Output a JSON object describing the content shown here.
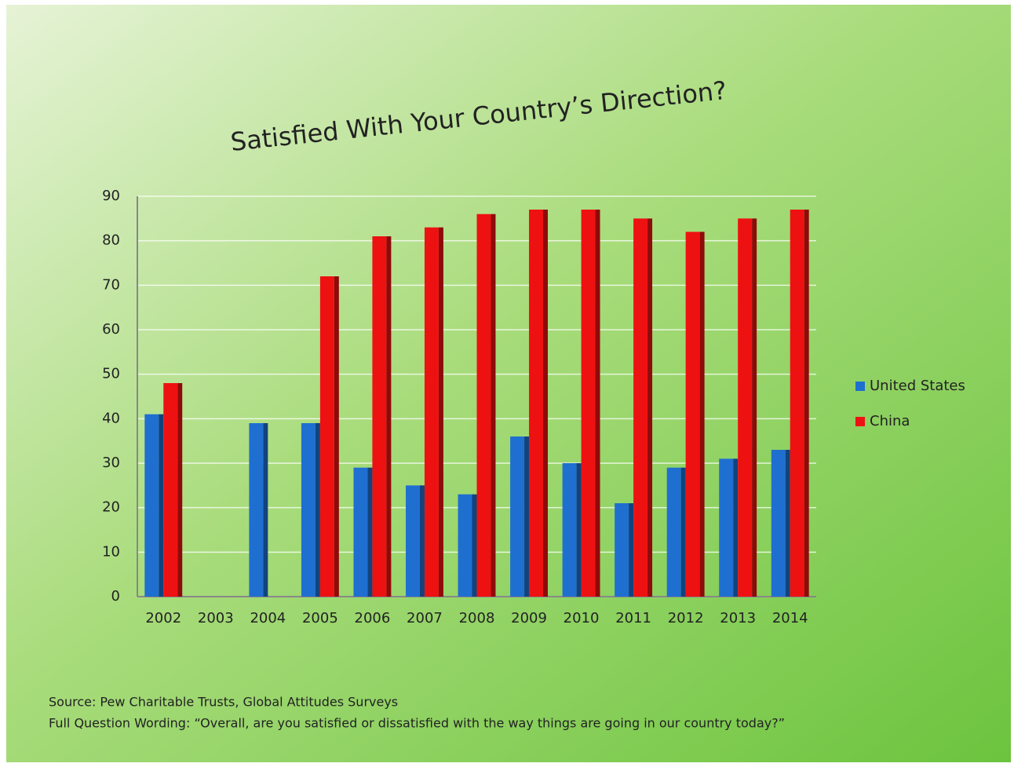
{
  "chart_data": {
    "type": "bar",
    "title": "Satisfied With Your Country’s Direction?",
    "categories": [
      "2002",
      "2003",
      "2004",
      "2005",
      "2006",
      "2007",
      "2008",
      "2009",
      "2010",
      "2011",
      "2012",
      "2013",
      "2014"
    ],
    "series": [
      {
        "name": "United States",
        "color": "#1f6fd1",
        "values": [
          41,
          null,
          39,
          39,
          29,
          25,
          23,
          36,
          30,
          21,
          29,
          31,
          33
        ]
      },
      {
        "name": "China",
        "color": "#ee1111",
        "values": [
          48,
          null,
          null,
          72,
          81,
          83,
          86,
          87,
          87,
          85,
          82,
          85,
          87
        ]
      }
    ],
    "ylim": [
      0,
      90
    ],
    "yticks": [
      0,
      10,
      20,
      30,
      40,
      50,
      60,
      70,
      80,
      90
    ],
    "grid": true,
    "legend": "right",
    "notes": [
      "Source: Pew Charitable Trusts, Global Attitudes Surveys",
      "Full Question Wording: “Overall, are you satisfied or dissatisfied with the way things are going in our country today?”"
    ]
  }
}
